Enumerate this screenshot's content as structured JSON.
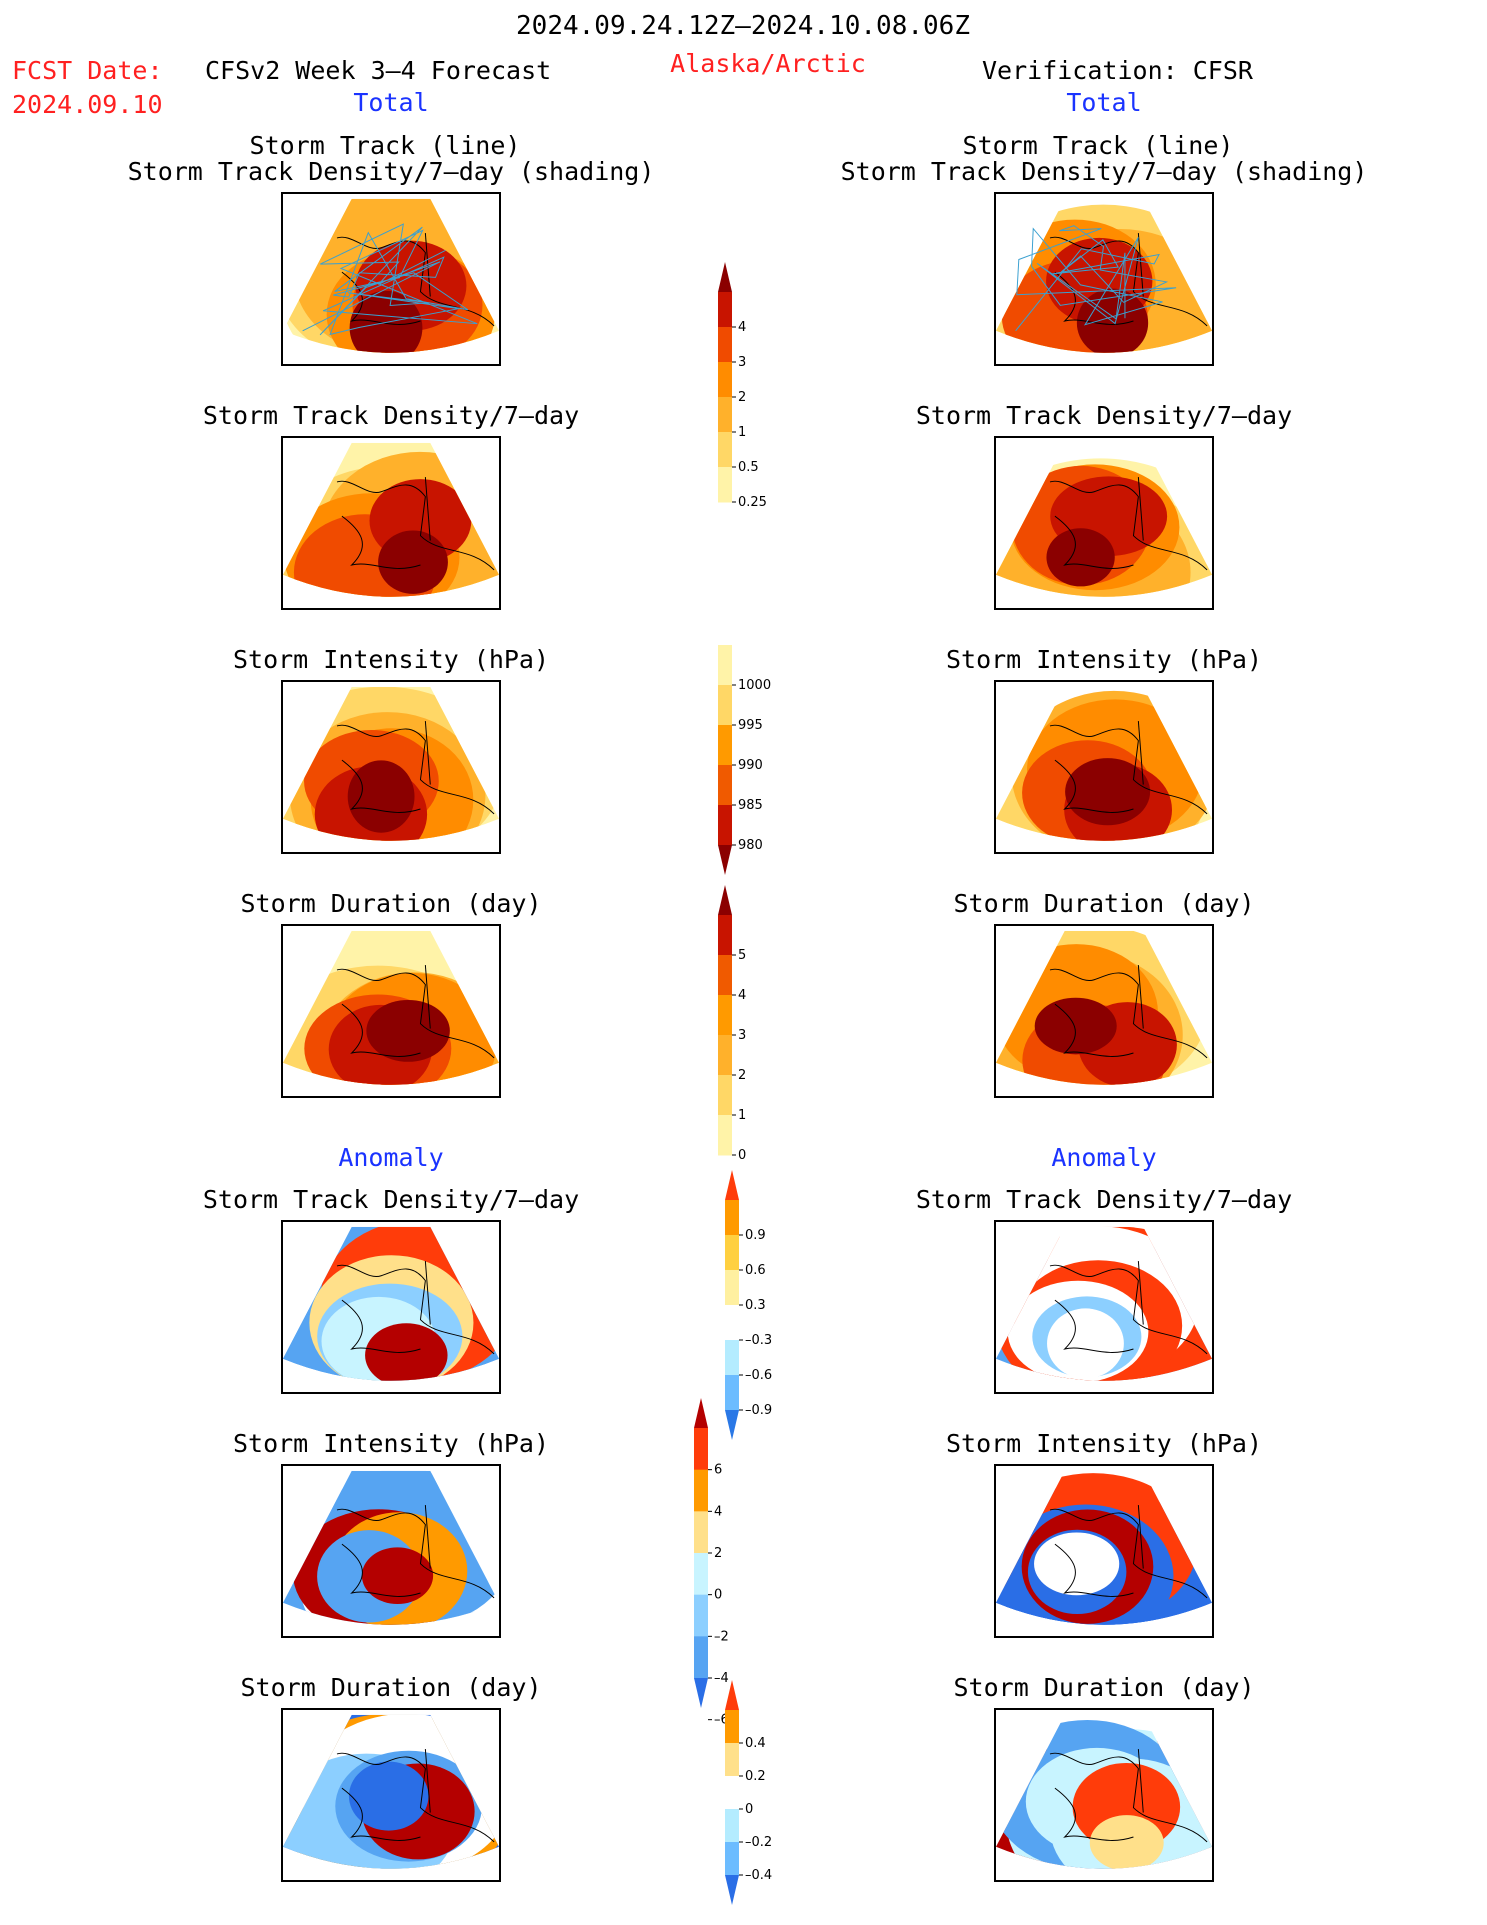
{
  "header": {
    "period": "2024.09.24.12Z–2024.10.08.06Z",
    "fcst_label": "FCST Date:",
    "fcst_date": "2024.09.10",
    "model": "CFSv2 Week 3–4 Forecast",
    "region": "Alaska/Arctic",
    "verification": "Verification: CFSR"
  },
  "sections": {
    "total": "Total",
    "anomaly": "Anomaly"
  },
  "titles": {
    "track_line": "Storm Track (line)",
    "track_shading": "Storm Track Density/7–day (shading)",
    "density": "Storm Track Density/7–day",
    "intensity": "Storm Intensity (hPa)",
    "duration": "Storm Duration (day)"
  },
  "colorbars": {
    "density_total": {
      "labels": [
        "4",
        "3",
        "2",
        "1",
        "0.5",
        "0.25"
      ],
      "colors": [
        "#8b0000",
        "#c81400",
        "#f04b00",
        "#ff8c00",
        "#ffb12b",
        "#ffd766",
        "#fff3a8"
      ]
    },
    "intensity_total": {
      "labels": [
        "1000",
        "995",
        "990",
        "985",
        "980"
      ],
      "colors": [
        "#fff3a8",
        "#ffd766",
        "#ff9a00",
        "#f05a00",
        "#c81400",
        "#8b0000"
      ]
    },
    "duration_total": {
      "labels": [
        "5",
        "4",
        "3",
        "2",
        "1",
        "0"
      ],
      "colors": [
        "#8b0000",
        "#c81400",
        "#f05a00",
        "#ff9a00",
        "#ffb12b",
        "#ffd766",
        "#fff3a8"
      ]
    },
    "density_anomaly": {
      "labels": [
        "0.9",
        "0.6",
        "0.3",
        "–0.3",
        "–0.6",
        "–0.9"
      ],
      "colors": [
        "#ff3c0a",
        "#ff9a00",
        "#ffd040",
        "#fff0a0",
        "#ffffff",
        "#b4ecff",
        "#6cbcff",
        "#2a78e6"
      ]
    },
    "intensity_anomaly": {
      "labels": [
        "6",
        "4",
        "2",
        "0",
        "–2",
        "–4",
        "–6"
      ],
      "colors": [
        "#b40000",
        "#ff3c0a",
        "#ff9a00",
        "#ffe08a",
        "#c8f4ff",
        "#8ccfff",
        "#56a4f2",
        "#2a6ee6"
      ]
    },
    "duration_anomaly": {
      "labels": [
        "0.4",
        "0.2",
        "0",
        "–0.2",
        "–0.4"
      ],
      "colors": [
        "#ff3c0a",
        "#ff9a00",
        "#ffe08a",
        "#ffffff",
        "#b4ecff",
        "#6cbcff",
        "#2a6ee6"
      ]
    }
  },
  "panels": {
    "left_track": "mixed-warm",
    "right_track": "mixed-warm",
    "left_density": "warm",
    "right_density": "warm",
    "left_intensity": "warm",
    "right_intensity": "warm",
    "left_duration": "warm",
    "right_duration": "warm",
    "left_density_anom": "anom",
    "right_density_anom": "anom",
    "left_intensity_anom": "anom",
    "right_intensity_anom": "anom",
    "left_duration_anom": "anom",
    "right_duration_anom": "anom"
  }
}
